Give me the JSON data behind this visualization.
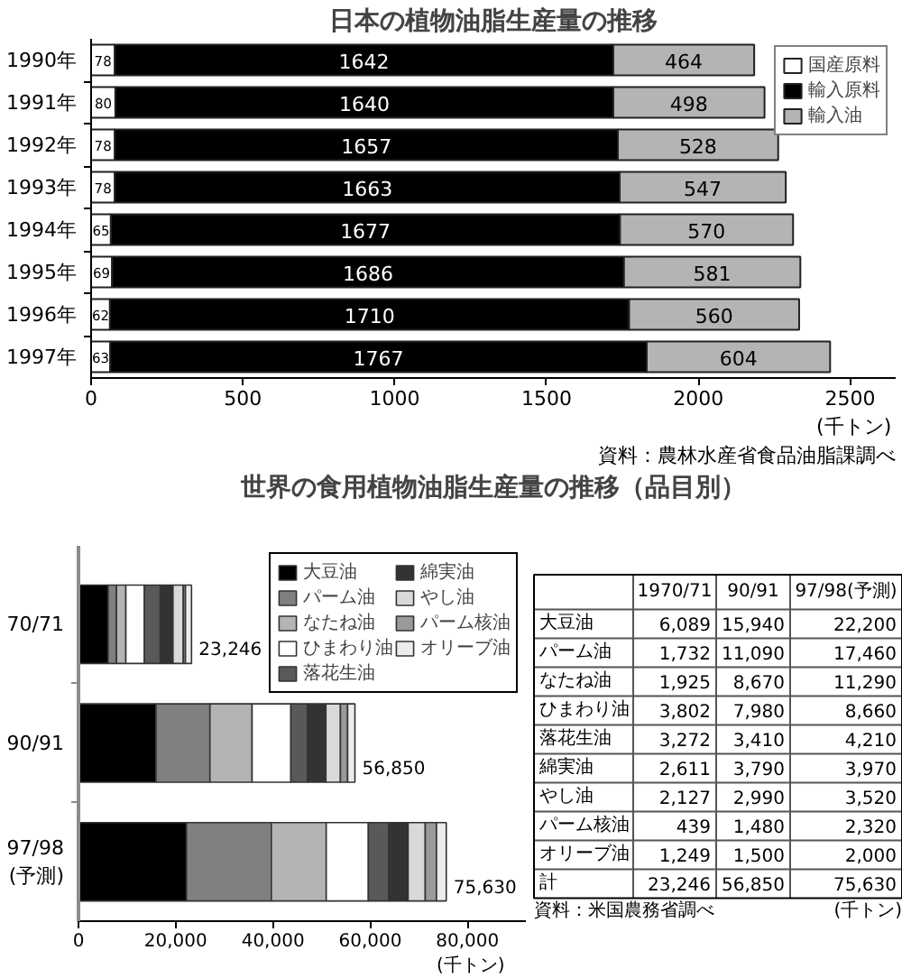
{
  "chart_data": [
    {
      "type": "bar",
      "title": "日本の植物油脂生産量の推移",
      "categories": [
        "1990年",
        "1991年",
        "1992年",
        "1993年",
        "1994年",
        "1995年",
        "1996年",
        "1997年"
      ],
      "orientation": "horizontal",
      "stacked": true,
      "series": [
        {
          "name": "国産原料",
          "color": "#ffffff",
          "values": [
            78,
            80,
            78,
            78,
            65,
            69,
            62,
            63
          ]
        },
        {
          "name": "輸入原料",
          "color": "#000000",
          "values": [
            1642,
            1640,
            1657,
            1663,
            1677,
            1686,
            1710,
            1767
          ]
        },
        {
          "name": "輸入油",
          "color": "#b4b4b4",
          "values": [
            464,
            498,
            528,
            547,
            570,
            581,
            560,
            604
          ]
        }
      ],
      "xlim": [
        0,
        2650
      ],
      "xticks": [
        0,
        500,
        1000,
        1500,
        2000,
        2500
      ],
      "xlabel": "(千トン)",
      "data_labels": true,
      "legend": "top right",
      "annotations": [
        "資料：農林水産省食品油脂課調べ"
      ]
    },
    {
      "type": "bar",
      "title": "世界の食用植物油脂生産量の推移（品目別）",
      "categories": [
        "70/71",
        "90/91",
        "97/98\n(予測)"
      ],
      "orientation": "horizontal",
      "stacked": true,
      "series": [
        {
          "name": "大豆油",
          "color": "#000000",
          "values": [
            6089,
            15940,
            22200
          ]
        },
        {
          "name": "パーム油",
          "color": "#808080",
          "values": [
            1732,
            11090,
            17460
          ]
        },
        {
          "name": "なたね油",
          "color": "#b4b4b4",
          "values": [
            1925,
            8670,
            11290
          ]
        },
        {
          "name": "ひまわり油",
          "color": "#ffffff",
          "values": [
            3802,
            7980,
            8660
          ]
        },
        {
          "name": "落花生油",
          "color": "#595959",
          "values": [
            3272,
            3410,
            4210
          ]
        },
        {
          "name": "綿実油",
          "color": "#333333",
          "values": [
            2611,
            3790,
            3970
          ]
        },
        {
          "name": "やし油",
          "color": "#d9d9d9",
          "values": [
            2127,
            2990,
            3520
          ]
        },
        {
          "name": "パーム核油",
          "color": "#9a9a9a",
          "values": [
            439,
            1480,
            2320
          ]
        },
        {
          "name": "オリーブ油",
          "color": "#ececec",
          "values": [
            1249,
            1500,
            2000
          ]
        }
      ],
      "xlim": [
        0,
        92000
      ],
      "xticks": [
        0,
        {
          "value": 20000,
          "label": "20,000"
        },
        {
          "value": 40000,
          "label": "40,000"
        },
        {
          "value": 60000,
          "label": "60,000"
        },
        {
          "value": 80000,
          "label": "80,000"
        }
      ],
      "xlabel": "(千トン)",
      "totals": [
        "23,246",
        "56,850",
        "75,630"
      ],
      "legend": "top right"
    },
    {
      "type": "other",
      "categories": [
        "1970/71",
        "90/91",
        "97/98(予測)"
      ],
      "y_categories": [
        "大豆油",
        "パーム油",
        "なたね油",
        "ひまわり油",
        "落花生油",
        "綿実油",
        "やし油",
        "パーム核油",
        "オリーブ油",
        "計"
      ],
      "cell_labels": [
        [
          "6,089",
          "15,940",
          "22,200"
        ],
        [
          "1,732",
          "11,090",
          "17,460"
        ],
        [
          "1,925",
          "8,670",
          "11,290"
        ],
        [
          "3,802",
          "7,980",
          "8,660"
        ],
        [
          "3,272",
          "3,410",
          "4,210"
        ],
        [
          "2,611",
          "3,790",
          "3,970"
        ],
        [
          "2,127",
          "2,990",
          "3,520"
        ],
        [
          "439",
          "1,480",
          "2,320"
        ],
        [
          "1,249",
          "1,500",
          "2,000"
        ],
        [
          "23,246",
          "56,850",
          "75,630"
        ]
      ],
      "annotations": [
        "資料：米国農務省調べ",
        "(千トン)"
      ]
    }
  ]
}
